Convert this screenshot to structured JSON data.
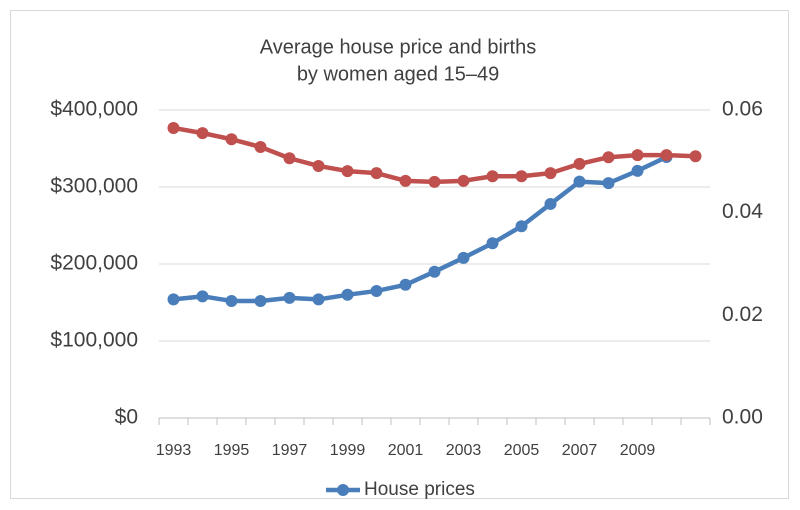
{
  "chart_data": {
    "type": "line",
    "title": [
      "Average house price and births",
      "by women aged 15–49"
    ],
    "categories": [
      "1993",
      null,
      "1995",
      null,
      "1997",
      null,
      "1999",
      null,
      "2001",
      null,
      "2003",
      null,
      "2005",
      null,
      "2007",
      null,
      "2009",
      null,
      null
    ],
    "series": [
      {
        "name": "House prices",
        "color": "#4a7ebb",
        "axis": "y",
        "values": [
          154000,
          158000,
          152000,
          152000,
          156000,
          154000,
          160000,
          165000,
          173000,
          190000,
          208000,
          227000,
          249000,
          278000,
          307000,
          305000,
          321000,
          339000,
          null
        ]
      },
      {
        "color": "#c0504d",
        "axis": "y2",
        "values": [
          0.0565,
          0.0555,
          0.0543,
          0.0528,
          0.0506,
          0.0491,
          0.0481,
          0.0477,
          0.0462,
          0.046,
          0.0462,
          0.0471,
          0.0471,
          0.0477,
          0.0495,
          0.0508,
          0.0512,
          0.0512,
          0.051
        ]
      }
    ],
    "ylim": [
      0,
      400000
    ],
    "yticks": [
      {
        "value": 0,
        "label": "$0"
      },
      {
        "value": 100000,
        "label": "$100,000"
      },
      {
        "value": 200000,
        "label": "$200,000"
      },
      {
        "value": 300000,
        "label": "$300,000"
      },
      {
        "value": 400000,
        "label": "$400,000"
      }
    ],
    "y2lim": [
      0,
      0.06
    ],
    "y2ticks": [
      {
        "value": 0,
        "label": "0.00"
      },
      0.02,
      0.04,
      0.06
    ],
    "grid": true,
    "legend": "bottom"
  }
}
